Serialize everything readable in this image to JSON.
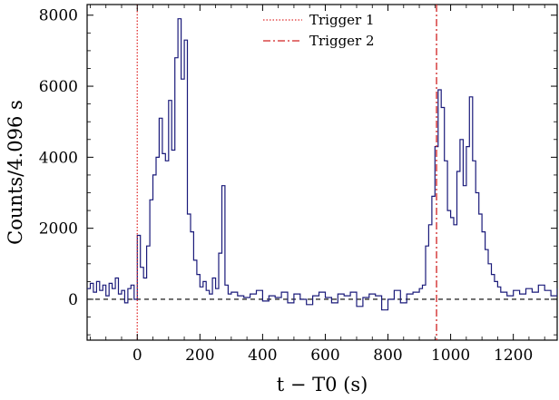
{
  "chart_data": {
    "type": "line",
    "title": "",
    "xlabel": "t − T0 (s)",
    "ylabel": "Counts/4.096 s",
    "xlim": [
      -160,
      1340
    ],
    "ylim": [
      -1150,
      8300
    ],
    "xticks": [
      0,
      200,
      400,
      600,
      800,
      1000,
      1200
    ],
    "yticks": [
      0,
      2000,
      4000,
      6000,
      8000
    ],
    "xtick_labels": [
      "0",
      "200",
      "400",
      "600",
      "800",
      "1000",
      "1200"
    ],
    "ytick_labels": [
      "0",
      "2000",
      "4000",
      "6000",
      "8000"
    ],
    "grid": false,
    "legend_position": "top-center",
    "baseline": 0,
    "series": [
      {
        "name": "",
        "color": "#1a1a7a",
        "style": "steps",
        "x": [
          -160,
          -150,
          -140,
          -130,
          -120,
          -110,
          -100,
          -90,
          -80,
          -70,
          -60,
          -50,
          -40,
          -30,
          -20,
          -10,
          0,
          10,
          20,
          30,
          40,
          50,
          60,
          70,
          80,
          90,
          100,
          110,
          120,
          130,
          140,
          150,
          160,
          170,
          180,
          190,
          200,
          210,
          220,
          230,
          240,
          250,
          260,
          270,
          280,
          290,
          300,
          320,
          340,
          360,
          380,
          400,
          420,
          440,
          460,
          480,
          500,
          520,
          540,
          560,
          580,
          600,
          620,
          640,
          660,
          680,
          700,
          720,
          740,
          760,
          780,
          800,
          820,
          840,
          860,
          880,
          900,
          910,
          920,
          930,
          940,
          950,
          960,
          970,
          980,
          990,
          1000,
          1010,
          1020,
          1030,
          1040,
          1050,
          1060,
          1070,
          1080,
          1090,
          1100,
          1110,
          1120,
          1130,
          1140,
          1150,
          1160,
          1180,
          1200,
          1220,
          1240,
          1260,
          1280,
          1300,
          1320,
          1340
        ],
        "y": [
          300,
          450,
          200,
          500,
          250,
          400,
          100,
          450,
          300,
          600,
          150,
          250,
          -100,
          300,
          400,
          0,
          1800,
          900,
          600,
          1500,
          2800,
          3500,
          4000,
          5100,
          4100,
          3900,
          5600,
          4200,
          6800,
          7900,
          6200,
          7300,
          2400,
          1900,
          1100,
          700,
          350,
          500,
          250,
          150,
          600,
          300,
          1300,
          3200,
          400,
          150,
          200,
          100,
          50,
          150,
          250,
          -50,
          100,
          50,
          200,
          -100,
          150,
          0,
          -150,
          100,
          200,
          50,
          -100,
          150,
          100,
          200,
          -200,
          50,
          150,
          100,
          -300,
          0,
          250,
          -100,
          150,
          200,
          300,
          400,
          1500,
          2100,
          2900,
          4300,
          5900,
          5400,
          3900,
          2500,
          2300,
          2100,
          3600,
          4500,
          3200,
          4300,
          5700,
          3900,
          3000,
          2400,
          1900,
          1400,
          1000,
          700,
          500,
          350,
          200,
          100,
          250,
          150,
          300,
          200,
          400,
          250,
          100,
          300
        ]
      }
    ],
    "vertical_markers": [
      {
        "name": "Trigger 1",
        "x": 0,
        "color": "#e03030",
        "dash": "1.5,2"
      },
      {
        "name": "Trigger 2",
        "x": 955,
        "color": "#d02020",
        "dash": "8,3,2,3"
      }
    ]
  }
}
